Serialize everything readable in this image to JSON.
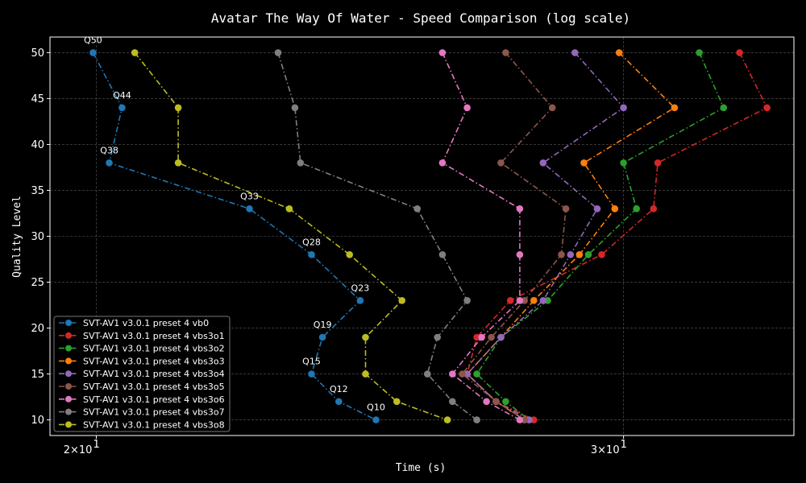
{
  "chart_data": {
    "type": "line",
    "title": "Avatar The Way Of Water - Speed Comparison (log scale)",
    "xlabel": "Time (s)",
    "ylabel": "Quality Level",
    "x_scale": "log",
    "xlim": [
      19.3,
      34.2
    ],
    "ylim": [
      8.3,
      51.7
    ],
    "x_ticks": [
      {
        "value": 20,
        "base": "2×10",
        "exp": "1"
      },
      {
        "value": 30,
        "base": "3×10",
        "exp": "1"
      }
    ],
    "y_ticks": [
      10,
      15,
      20,
      25,
      30,
      35,
      40,
      45,
      50
    ],
    "grid": true,
    "legend_position": "lower-left",
    "annotations": [
      {
        "text": "Q50",
        "x": 19.95,
        "y": 50
      },
      {
        "text": "Q44",
        "x": 20.4,
        "y": 44
      },
      {
        "text": "Q38",
        "x": 20.2,
        "y": 38
      },
      {
        "text": "Q33",
        "x": 22.5,
        "y": 33
      },
      {
        "text": "Q28",
        "x": 23.6,
        "y": 28
      },
      {
        "text": "Q23",
        "x": 24.5,
        "y": 23
      },
      {
        "text": "Q19",
        "x": 23.8,
        "y": 19
      },
      {
        "text": "Q15",
        "x": 23.6,
        "y": 15
      },
      {
        "text": "Q12",
        "x": 24.1,
        "y": 12
      },
      {
        "text": "Q10",
        "x": 24.8,
        "y": 10
      }
    ],
    "series": [
      {
        "name": "SVT-AV1 v3.0.1 preset 4 vb0",
        "color": "#1f77b4",
        "x": [
          19.95,
          20.4,
          20.2,
          22.5,
          23.6,
          24.5,
          23.8,
          23.6,
          24.1,
          24.8
        ],
        "y": [
          50,
          44,
          38,
          33,
          28,
          23,
          19,
          15,
          12,
          10
        ]
      },
      {
        "name": "SVT-AV1 v3.0.1 preset 4 vbs3o1",
        "color": "#d62728",
        "x": [
          32.8,
          33.5,
          30.8,
          30.7,
          29.5,
          27.5,
          26.8,
          26.6,
          27.2,
          28.0
        ],
        "y": [
          50,
          44,
          38,
          33,
          28,
          23,
          19,
          15,
          12,
          10
        ]
      },
      {
        "name": "SVT-AV1 v3.0.1 preset 4 vbs3o2",
        "color": "#2ca02c",
        "x": [
          31.8,
          32.4,
          30.0,
          30.3,
          29.2,
          28.3,
          27.3,
          26.8,
          27.4,
          27.9
        ],
        "y": [
          50,
          44,
          38,
          33,
          28,
          23,
          19,
          15,
          12,
          10
        ]
      },
      {
        "name": "SVT-AV1 v3.0.1 preset 4 vbs3o3",
        "color": "#ff7f0e",
        "x": [
          29.9,
          31.2,
          29.1,
          29.8,
          29.0,
          28.0,
          27.3,
          26.6,
          27.2,
          27.8
        ],
        "y": [
          50,
          44,
          38,
          33,
          28,
          23,
          19,
          15,
          12,
          10
        ]
      },
      {
        "name": "SVT-AV1 v3.0.1 preset 4 vbs3o4",
        "color": "#9467bd",
        "x": [
          28.9,
          30.0,
          28.2,
          29.4,
          28.8,
          28.2,
          27.3,
          26.6,
          27.2,
          27.9
        ],
        "y": [
          50,
          44,
          38,
          33,
          28,
          23,
          19,
          15,
          12,
          10
        ]
      },
      {
        "name": "SVT-AV1 v3.0.1 preset 4 vbs3o5",
        "color": "#8c564b",
        "x": [
          27.4,
          28.4,
          27.3,
          28.7,
          28.6,
          27.8,
          27.1,
          26.5,
          27.2,
          27.8
        ],
        "y": [
          50,
          44,
          38,
          33,
          28,
          23,
          19,
          15,
          12,
          10
        ]
      },
      {
        "name": "SVT-AV1 v3.0.1 preset 4 vbs3o6",
        "color": "#e377c2",
        "x": [
          26.1,
          26.6,
          26.1,
          27.7,
          27.7,
          27.7,
          26.9,
          26.3,
          27.0,
          27.7
        ],
        "y": [
          50,
          44,
          38,
          33,
          28,
          23,
          19,
          15,
          12,
          10
        ]
      },
      {
        "name": "SVT-AV1 v3.0.1 preset 4 vbs3o7",
        "color": "#7f7f7f",
        "x": [
          23.0,
          23.3,
          23.4,
          25.6,
          26.1,
          26.6,
          26.0,
          25.8,
          26.3,
          26.8
        ],
        "y": [
          50,
          44,
          38,
          33,
          28,
          23,
          19,
          15,
          12,
          10
        ]
      },
      {
        "name": "SVT-AV1 v3.0.1 preset 4 vbs3o8",
        "color": "#bcbd22",
        "x": [
          20.6,
          21.3,
          21.3,
          23.2,
          24.3,
          25.3,
          24.6,
          24.6,
          25.2,
          26.2
        ],
        "y": [
          50,
          44,
          38,
          33,
          28,
          23,
          19,
          15,
          12,
          10
        ]
      }
    ]
  }
}
